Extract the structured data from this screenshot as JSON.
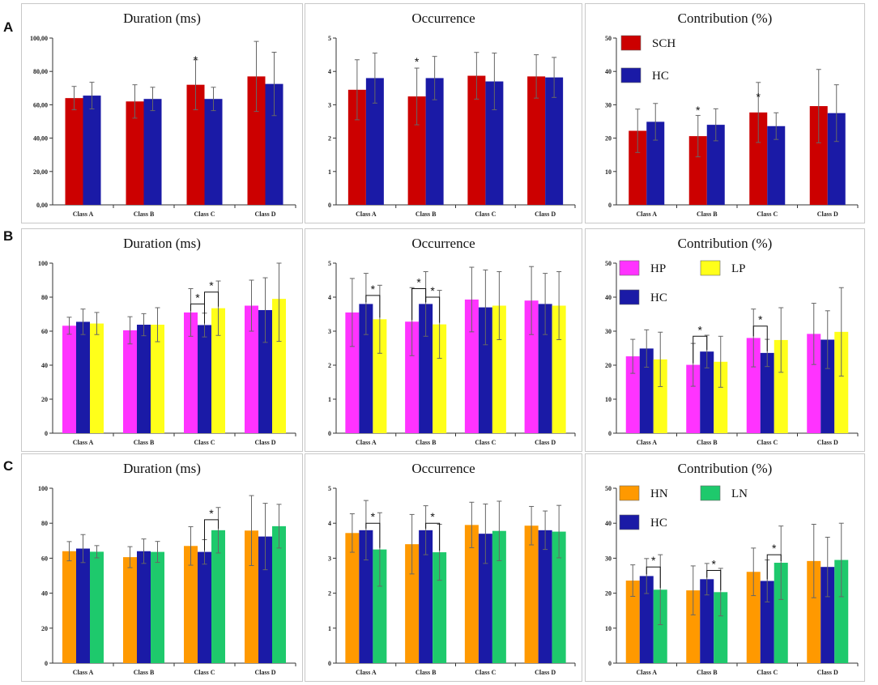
{
  "figure": {
    "row_labels": [
      "A",
      "B",
      "C"
    ],
    "colors": {
      "SCH": "#cc0000",
      "HC": "#1a1aa6",
      "HP": "#ff33ff",
      "LP": "#ffff1a",
      "HN": "#ff9900",
      "LN": "#1ec96c",
      "errorbar": "#666666",
      "axis": "#333333"
    }
  },
  "chart_data": [
    {
      "id": "A1",
      "row": "A",
      "type": "bar",
      "title": "Duration (ms)",
      "categories": [
        "Class A",
        "Class B",
        "Class C",
        "Class D"
      ],
      "yticks": [
        "0,00",
        "20,00",
        "40,00",
        "60,00",
        "80,00",
        "100,00"
      ],
      "ylim": [
        0,
        100
      ],
      "series": [
        {
          "name": "SCH",
          "values": [
            64,
            62,
            72,
            77
          ],
          "err": [
            7,
            10,
            15,
            21
          ]
        },
        {
          "name": "HC",
          "values": [
            65.5,
            63.5,
            63.5,
            72.5
          ],
          "err": [
            8,
            7,
            7,
            19
          ]
        }
      ],
      "legend": [],
      "stars": [
        {
          "cat": 2,
          "from": 0,
          "to": 0,
          "bracket": false,
          "y": 83
        }
      ]
    },
    {
      "id": "A2",
      "row": "A",
      "type": "bar",
      "title": "Occurrence",
      "categories": [
        "Class A",
        "Class B",
        "Class C",
        "Class D"
      ],
      "yticks": [
        "0",
        "1",
        "2",
        "3",
        "4",
        "5"
      ],
      "ylim": [
        0,
        5
      ],
      "series": [
        {
          "name": "SCH",
          "values": [
            3.45,
            3.25,
            3.87,
            3.85
          ],
          "err": [
            0.9,
            0.85,
            0.7,
            0.65
          ]
        },
        {
          "name": "HC",
          "values": [
            3.8,
            3.8,
            3.7,
            3.82
          ],
          "err": [
            0.75,
            0.65,
            0.85,
            0.6
          ]
        }
      ],
      "legend": [],
      "stars": [
        {
          "cat": 1,
          "from": 0,
          "to": 0,
          "bracket": false,
          "y": 4.1
        }
      ]
    },
    {
      "id": "A3",
      "row": "A",
      "type": "bar",
      "title": "Contribution (%)",
      "categories": [
        "Class A",
        "Class B",
        "Class C",
        "Class D"
      ],
      "yticks": [
        "0",
        "10",
        "20",
        "30",
        "40",
        "50"
      ],
      "ylim": [
        0,
        50
      ],
      "series": [
        {
          "name": "SCH",
          "values": [
            22.2,
            20.6,
            27.7,
            29.6
          ],
          "err": [
            6.5,
            6.2,
            9,
            11
          ]
        },
        {
          "name": "HC",
          "values": [
            24.9,
            24,
            23.6,
            27.5
          ],
          "err": [
            5.5,
            4.8,
            4,
            8.5
          ]
        }
      ],
      "legend": [
        {
          "name": "SCH",
          "label": "SCH"
        },
        {
          "name": "HC",
          "label": "HC"
        }
      ],
      "stars": [
        {
          "cat": 1,
          "from": 0,
          "to": 0,
          "bracket": false,
          "y": 26.5
        },
        {
          "cat": 2,
          "from": 0,
          "to": 0,
          "bracket": false,
          "y": 30.5
        }
      ]
    },
    {
      "id": "B1",
      "row": "B",
      "type": "bar",
      "title": "Duration (ms)",
      "categories": [
        "Class A",
        "Class B",
        "Class C",
        "Class D"
      ],
      "yticks": [
        "0",
        "20",
        "40",
        "60",
        "80",
        "100"
      ],
      "ylim": [
        0,
        100
      ],
      "series": [
        {
          "name": "HP",
          "values": [
            63.2,
            60.5,
            71,
            75
          ],
          "err": [
            5,
            8,
            14,
            15
          ]
        },
        {
          "name": "HC",
          "values": [
            65.5,
            63.8,
            63.6,
            72.4
          ],
          "err": [
            7.5,
            6.5,
            7,
            19
          ]
        },
        {
          "name": "LP",
          "values": [
            64.5,
            63.8,
            73.5,
            79
          ],
          "err": [
            6.5,
            10,
            16,
            25
          ]
        }
      ],
      "legend": [],
      "stars": [
        {
          "cat": 2,
          "from": 0,
          "to": 1,
          "bracket": true,
          "y": 76
        },
        {
          "cat": 2,
          "from": 1,
          "to": 2,
          "bracket": true,
          "y": 83
        }
      ]
    },
    {
      "id": "B2",
      "row": "B",
      "type": "bar",
      "title": "Occurrence",
      "categories": [
        "Class A",
        "Class B",
        "Class C",
        "Class D"
      ],
      "yticks": [
        "0",
        "1",
        "2",
        "3",
        "4",
        "5"
      ],
      "ylim": [
        0,
        5
      ],
      "series": [
        {
          "name": "HP",
          "values": [
            3.55,
            3.28,
            3.93,
            3.9
          ],
          "err": [
            1,
            1,
            0.95,
            1
          ]
        },
        {
          "name": "HC",
          "values": [
            3.8,
            3.8,
            3.7,
            3.8
          ],
          "err": [
            0.9,
            0.95,
            1.1,
            0.9
          ]
        },
        {
          "name": "LP",
          "values": [
            3.35,
            3.2,
            3.75,
            3.75
          ],
          "err": [
            1,
            1,
            1,
            1
          ]
        }
      ],
      "legend": [],
      "stars": [
        {
          "cat": 0,
          "from": 1,
          "to": 2,
          "bracket": true,
          "y": 4.05
        },
        {
          "cat": 1,
          "from": 0,
          "to": 1,
          "bracket": true,
          "y": 4.25
        },
        {
          "cat": 1,
          "from": 1,
          "to": 2,
          "bracket": true,
          "y": 4.0
        }
      ]
    },
    {
      "id": "B3",
      "row": "B",
      "type": "bar",
      "title": "Contribution (%)",
      "categories": [
        "Class A",
        "Class B",
        "Class C",
        "Class D"
      ],
      "yticks": [
        "0",
        "10",
        "20",
        "30",
        "40",
        "50"
      ],
      "ylim": [
        0,
        50
      ],
      "series": [
        {
          "name": "HP",
          "values": [
            22.6,
            20.1,
            28,
            29.2
          ],
          "err": [
            5,
            6.3,
            8.5,
            9
          ]
        },
        {
          "name": "HC",
          "values": [
            24.9,
            24,
            23.6,
            27.5
          ],
          "err": [
            5.5,
            4.8,
            4,
            8.5
          ]
        },
        {
          "name": "LP",
          "values": [
            21.7,
            21,
            27.4,
            29.8
          ],
          "err": [
            8,
            7.5,
            9.5,
            13
          ]
        }
      ],
      "legend": [
        {
          "name": "HP",
          "label": "HP"
        },
        {
          "name": "LP",
          "label": "LP"
        },
        {
          "name": "HC",
          "label": "HC"
        }
      ],
      "stars": [
        {
          "cat": 1,
          "from": 0,
          "to": 1,
          "bracket": true,
          "y": 28.5
        },
        {
          "cat": 2,
          "from": 0,
          "to": 1,
          "bracket": true,
          "y": 31.5
        }
      ]
    },
    {
      "id": "C1",
      "row": "C",
      "type": "bar",
      "title": "Duration (ms)",
      "categories": [
        "Class A",
        "Class B",
        "Class C",
        "Class D"
      ],
      "yticks": [
        "0",
        "20",
        "40",
        "60",
        "80",
        "100"
      ],
      "ylim": [
        0,
        100
      ],
      "series": [
        {
          "name": "HN",
          "values": [
            64,
            60.6,
            67,
            75.8
          ],
          "err": [
            5.5,
            6,
            11,
            20
          ]
        },
        {
          "name": "HC",
          "values": [
            65.5,
            64,
            63.6,
            72.4
          ],
          "err": [
            8,
            7,
            7,
            19
          ]
        },
        {
          "name": "LN",
          "values": [
            63.7,
            63.6,
            76,
            78.3
          ],
          "err": [
            3.5,
            6,
            13,
            12.5
          ]
        }
      ],
      "legend": [],
      "stars": [
        {
          "cat": 2,
          "from": 1,
          "to": 2,
          "bracket": true,
          "y": 82
        }
      ]
    },
    {
      "id": "C2",
      "row": "C",
      "type": "bar",
      "title": "Occurrence",
      "categories": [
        "Class A",
        "Class B",
        "Class C",
        "Class D"
      ],
      "yticks": [
        "0",
        "1",
        "2",
        "3",
        "4",
        "5"
      ],
      "ylim": [
        0,
        5
      ],
      "series": [
        {
          "name": "HN",
          "values": [
            3.72,
            3.4,
            3.95,
            3.93
          ],
          "err": [
            0.55,
            0.85,
            0.65,
            0.55
          ]
        },
        {
          "name": "HC",
          "values": [
            3.8,
            3.8,
            3.7,
            3.8
          ],
          "err": [
            0.85,
            0.7,
            0.85,
            0.55
          ]
        },
        {
          "name": "LN",
          "values": [
            3.25,
            3.17,
            3.78,
            3.76
          ],
          "err": [
            1.05,
            0.8,
            0.85,
            0.75
          ]
        }
      ],
      "legend": [],
      "stars": [
        {
          "cat": 0,
          "from": 1,
          "to": 2,
          "bracket": true,
          "y": 4.0
        },
        {
          "cat": 1,
          "from": 1,
          "to": 2,
          "bracket": true,
          "y": 4.0
        }
      ]
    },
    {
      "id": "C3",
      "row": "C",
      "type": "bar",
      "title": "Contribution (%)",
      "categories": [
        "Class A",
        "Class B",
        "Class C",
        "Class D"
      ],
      "yticks": [
        "0",
        "10",
        "20",
        "30",
        "40",
        "50"
      ],
      "ylim": [
        0,
        50
      ],
      "series": [
        {
          "name": "HN",
          "values": [
            23.6,
            20.8,
            26.1,
            29.2
          ],
          "err": [
            4.5,
            7,
            6.8,
            10.5
          ]
        },
        {
          "name": "HC",
          "values": [
            24.9,
            24,
            23.5,
            27.5
          ],
          "err": [
            5,
            4.5,
            6,
            8.5
          ]
        },
        {
          "name": "LN",
          "values": [
            21,
            20.3,
            28.7,
            29.5
          ],
          "err": [
            10,
            6.8,
            10.5,
            10.5
          ]
        }
      ],
      "legend": [
        {
          "name": "HN",
          "label": "HN"
        },
        {
          "name": "LN",
          "label": "LN"
        },
        {
          "name": "HC",
          "label": "HC"
        }
      ],
      "stars": [
        {
          "cat": 0,
          "from": 1,
          "to": 2,
          "bracket": true,
          "y": 27.5
        },
        {
          "cat": 1,
          "from": 1,
          "to": 2,
          "bracket": true,
          "y": 26.5
        },
        {
          "cat": 2,
          "from": 1,
          "to": 2,
          "bracket": true,
          "y": 31
        }
      ]
    }
  ]
}
